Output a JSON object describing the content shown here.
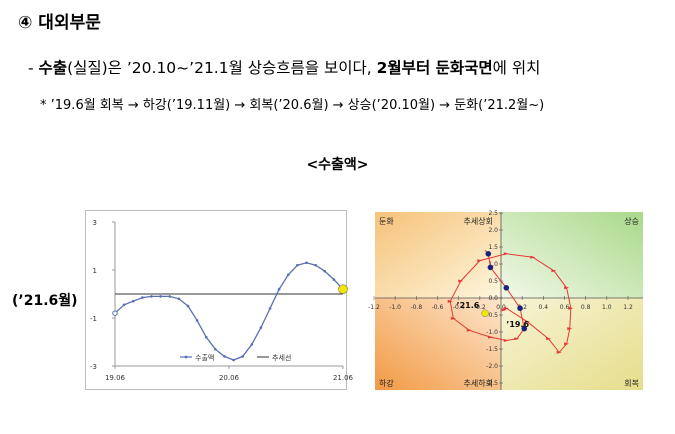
{
  "heading": "④ 대외부문",
  "line1": {
    "dash": "- ",
    "bold1": "수출",
    "after_bold1": "(실질)은  ’20.10~’21.1월 상승흐름을 보이다, ",
    "bold2": "2월부터 둔화국면",
    "tail": "에 위치"
  },
  "line2": "* ’19.6월 회복 → 하강(’19.11월) → 회복(’20.6월) → 상승(’20.10월) → 둔화(’21.2월~)",
  "chart_title": "<수출액>",
  "side_label": "(’21.6월)",
  "colors": {
    "cycle_line": "#5a6fb3",
    "trend_line": "#333333",
    "highlight": "#f2e600",
    "spiral_line": "#e53935",
    "spiral_marker": "#1a237e"
  },
  "chart_data": [
    {
      "type": "line",
      "x_ticks": [
        "19.06",
        "20.06",
        "21.06"
      ],
      "y_ticks": [
        "3",
        "1",
        "-1",
        "-3"
      ],
      "ylim": [
        -3,
        3
      ],
      "series": [
        {
          "name": "수출액",
          "values": [
            -0.8,
            -0.45,
            -0.3,
            -0.15,
            -0.1,
            -0.1,
            -0.1,
            -0.2,
            -0.5,
            -1.1,
            -1.8,
            -2.3,
            -2.6,
            -2.75,
            -2.6,
            -2.1,
            -1.4,
            -0.6,
            0.2,
            0.8,
            1.2,
            1.3,
            1.2,
            0.95,
            0.6,
            0.2
          ]
        },
        {
          "name": "추세선",
          "values": [
            0,
            0
          ]
        }
      ],
      "legend": [
        "수출액",
        "추세선"
      ],
      "legend_position": "bottom"
    },
    {
      "type": "scatter",
      "x_ticks": [
        "-1.2",
        "-1.0",
        "-0.8",
        "-0.6",
        "-0.4",
        "-0.2",
        "0.0",
        "0.2",
        "0.4",
        "0.6",
        "0.8",
        "1.0",
        "1.2"
      ],
      "y_ticks": [
        "2.5",
        "2.0",
        "1.5",
        "1.0",
        "0.5",
        "0.0",
        "-0.5",
        "-1.0",
        "-1.5",
        "-2.0",
        "-2.5"
      ],
      "xlim": [
        -1.2,
        1.2
      ],
      "ylim": [
        -2.5,
        2.5
      ],
      "quadrants": {
        "top_left": "둔화",
        "top_right": "상승",
        "bottom_left": "하강",
        "bottom_right": "회복"
      },
      "axis_labels": {
        "top": "추세상회",
        "bottom": "추세하회"
      },
      "annotations": [
        "’21.6",
        "’19.6"
      ],
      "x": [
        0.03,
        0.05,
        0.25,
        0.45,
        0.55,
        0.62,
        0.65,
        0.66,
        0.62,
        0.5,
        0.3,
        0.05,
        -0.2,
        -0.38,
        -0.48,
        -0.45,
        -0.3,
        -0.1,
        0.05,
        0.15,
        0.22,
        0.18,
        0.05,
        -0.1,
        -0.12,
        -0.15
      ],
      "y": [
        -0.35,
        -0.3,
        -0.7,
        -1.2,
        -1.6,
        -1.35,
        -0.9,
        -0.3,
        0.3,
        0.8,
        1.2,
        1.3,
        1.1,
        0.5,
        -0.1,
        -0.6,
        -0.95,
        -1.15,
        -1.25,
        -1.2,
        -0.9,
        -0.3,
        0.3,
        0.9,
        1.3,
        1.4
      ]
    }
  ]
}
